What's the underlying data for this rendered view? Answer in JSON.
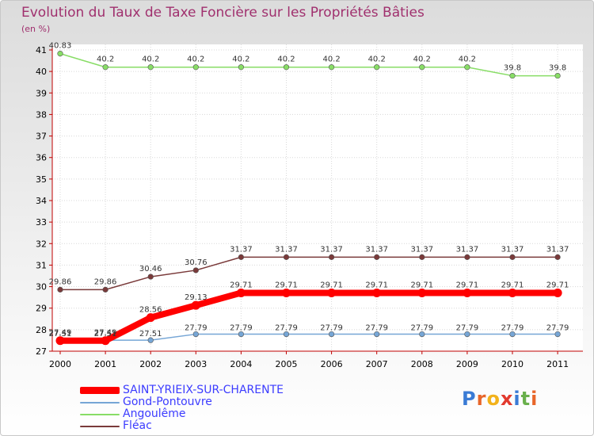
{
  "chart_data": {
    "type": "line",
    "title": "Evolution du Taux de Taxe Foncière sur les Propriétés Bâties",
    "ylabel": "(en %)",
    "xlabel": "",
    "categories": [
      "2000",
      "2001",
      "2002",
      "2003",
      "2004",
      "2005",
      "2006",
      "2007",
      "2008",
      "2009",
      "2010",
      "2011"
    ],
    "ylim": [
      27,
      41
    ],
    "yticks": [
      "27",
      "28",
      "29",
      "30",
      "31",
      "32",
      "33",
      "34",
      "35",
      "36",
      "37",
      "38",
      "39",
      "40",
      "41"
    ],
    "series": [
      {
        "name": "SAINT-YRIEIX-SUR-CHARENTE",
        "color": "#ff0000",
        "values": [
          27.49,
          27.49,
          28.56,
          29.13,
          29.71,
          29.71,
          29.71,
          29.71,
          29.71,
          29.71,
          29.71,
          29.71
        ],
        "labels": [
          "27.49",
          "27.49",
          "28.56",
          "29.13",
          "29.71",
          "29.71",
          "29.71",
          "29.71",
          "29.71",
          "29.71",
          "29.71",
          "29.71"
        ]
      },
      {
        "name": "Gond-Pontouvre",
        "color": "#76a6d6",
        "values": [
          27.51,
          27.51,
          27.51,
          27.79,
          27.79,
          27.79,
          27.79,
          27.79,
          27.79,
          27.79,
          27.79,
          27.79
        ],
        "labels": [
          "27.51",
          "27.51",
          "27.51",
          "27.79",
          "27.79",
          "27.79",
          "27.79",
          "27.79",
          "27.79",
          "27.79",
          "27.79",
          "27.79"
        ]
      },
      {
        "name": "Angoulême",
        "color": "#88dd66",
        "values": [
          40.83,
          40.2,
          40.2,
          40.2,
          40.2,
          40.2,
          40.2,
          40.2,
          40.2,
          40.2,
          39.8,
          39.8
        ],
        "labels": [
          "40.83",
          "40.2",
          "40.2",
          "40.2",
          "40.2",
          "40.2",
          "40.2",
          "40.2",
          "40.2",
          "40.2",
          "39.8",
          "39.8"
        ]
      },
      {
        "name": "Fléac",
        "color": "#7a3a3a",
        "values": [
          29.86,
          29.86,
          30.46,
          30.76,
          31.37,
          31.37,
          31.37,
          31.37,
          31.37,
          31.37,
          31.37,
          31.37
        ],
        "labels": [
          "29.86",
          "29.86",
          "30.46",
          "30.76",
          "31.37",
          "31.37",
          "31.37",
          "31.37",
          "31.37",
          "31.37",
          "31.37",
          "31.37"
        ]
      }
    ],
    "legend_position": "bottom-left"
  },
  "brand": {
    "letters": [
      "P",
      "r",
      "o",
      "x",
      "i",
      "t",
      "i"
    ]
  }
}
